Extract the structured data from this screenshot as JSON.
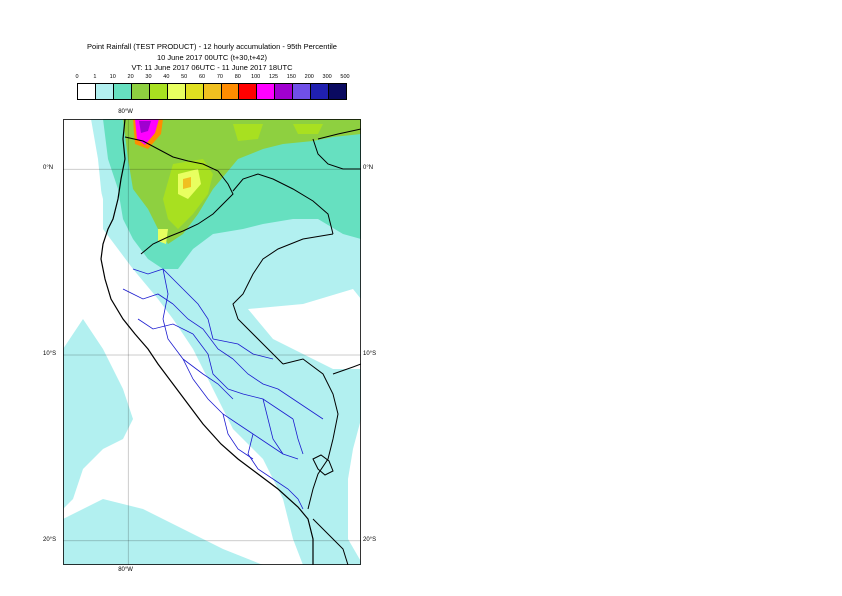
{
  "title": {
    "line1": "Point Rainfall (TEST PRODUCT) - 12 hourly accumulation - 95th Percentile",
    "line2": "10 June 2017 00UTC (t+30,t+42)",
    "line3": "VT: 11 June 2017 06UTC - 11 June 2017 18UTC"
  },
  "legend": {
    "thresholds": [
      "0",
      "1",
      "10",
      "20",
      "30",
      "40",
      "50",
      "60",
      "70",
      "80",
      "100",
      "125",
      "150",
      "200",
      "300",
      "500"
    ],
    "colors": [
      "#ffffff",
      "#b2f0f0",
      "#66e0c0",
      "#8ed040",
      "#a8e020",
      "#e8ff60",
      "#e0e020",
      "#f0c020",
      "#ff8c00",
      "#ff0000",
      "#ff00ff",
      "#a000d0",
      "#7050e8",
      "#2020b0",
      "#0a0a60"
    ]
  },
  "map": {
    "lat_labels": {
      "top": "0°N",
      "mid": "10°S",
      "bottom": "20°S"
    },
    "lon_labels": {
      "top": "80°W",
      "bottom": "80°W"
    },
    "lat_lines": [
      0,
      -10,
      -20
    ],
    "lon_lines": [
      -80
    ],
    "extent": {
      "lon_min": -83.5,
      "lon_max": -67.5,
      "lat_min": -21.3,
      "lat_max": 2.7
    }
  }
}
